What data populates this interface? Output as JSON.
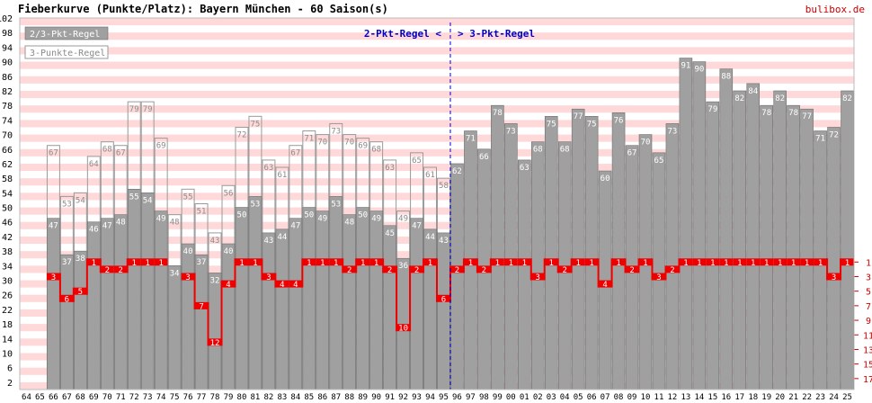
{
  "header": {
    "title": "Fieberkurve (Punkte/Platz): Bayern München - 60 Saison(s)",
    "brand": "bulibox.de"
  },
  "legend": {
    "item_23": "2/3-Pkt-Regel",
    "item_3": "3-Punkte-Regel"
  },
  "annotations": {
    "left": "2-Pkt-Regel <",
    "right": "> 3-Pkt-Regel"
  },
  "colors": {
    "bar_fill": "#a0a0a0",
    "bar_stroke": "#6e6e6e",
    "stripe": "#ffd9d9",
    "place_fill": "#ee0000",
    "place_axis": "#cc0000",
    "divider": "#0000cc",
    "annotation": "#0000cc",
    "outline": "#9a9a9a",
    "outline_label": "#8a8a8a"
  },
  "chart_data": {
    "type": "bar",
    "title": "Fieberkurve (Punkte/Platz): Bayern München - 60 Saison(s)",
    "categories": [
      "64",
      "65",
      "66",
      "67",
      "68",
      "69",
      "70",
      "71",
      "72",
      "73",
      "74",
      "75",
      "76",
      "77",
      "78",
      "79",
      "80",
      "81",
      "82",
      "83",
      "84",
      "85",
      "86",
      "87",
      "88",
      "89",
      "90",
      "91",
      "92",
      "93",
      "94",
      "95",
      "96",
      "97",
      "98",
      "99",
      "00",
      "01",
      "02",
      "03",
      "04",
      "05",
      "06",
      "07",
      "08",
      "09",
      "10",
      "11",
      "12",
      "13",
      "14",
      "15",
      "16",
      "17",
      "18",
      "19",
      "20",
      "21",
      "22",
      "23",
      "24",
      "25"
    ],
    "series": [
      {
        "name": "2/3-Pkt-Regel",
        "values": [
          null,
          null,
          47,
          37,
          38,
          46,
          47,
          48,
          55,
          54,
          49,
          34,
          40,
          37,
          32,
          40,
          50,
          53,
          43,
          44,
          47,
          50,
          49,
          53,
          48,
          50,
          49,
          45,
          36,
          47,
          44,
          43,
          62,
          71,
          66,
          78,
          73,
          63,
          68,
          75,
          68,
          77,
          75,
          60,
          76,
          67,
          70,
          65,
          73,
          91,
          90,
          79,
          88,
          82,
          84,
          78,
          82,
          78,
          77,
          71,
          72,
          82
        ]
      },
      {
        "name": "3-Punkte-Regel",
        "values": [
          null,
          null,
          67,
          53,
          54,
          64,
          68,
          67,
          79,
          79,
          69,
          48,
          55,
          51,
          43,
          56,
          72,
          75,
          63,
          61,
          67,
          71,
          70,
          73,
          70,
          69,
          68,
          63,
          49,
          65,
          61,
          58,
          null,
          null,
          null,
          null,
          null,
          null,
          null,
          null,
          null,
          null,
          null,
          null,
          null,
          null,
          null,
          null,
          null,
          null,
          null,
          null,
          null,
          null,
          null,
          null,
          null,
          null,
          null,
          null,
          null,
          null
        ]
      }
    ],
    "place": [
      null,
      null,
      3,
      6,
      5,
      1,
      2,
      2,
      1,
      1,
      1,
      null,
      3,
      7,
      12,
      4,
      1,
      1,
      3,
      4,
      4,
      1,
      1,
      1,
      2,
      1,
      1,
      2,
      10,
      2,
      1,
      6,
      2,
      1,
      2,
      1,
      1,
      1,
      3,
      1,
      2,
      1,
      1,
      4,
      1,
      2,
      1,
      3,
      2,
      1,
      1,
      1,
      1,
      1,
      1,
      1,
      1,
      1,
      1,
      1,
      3,
      1
    ],
    "y_ticks": [
      2,
      6,
      10,
      14,
      18,
      22,
      26,
      30,
      34,
      38,
      42,
      46,
      50,
      54,
      58,
      62,
      66,
      70,
      74,
      78,
      82,
      86,
      90,
      94,
      98,
      102
    ],
    "place_ticks": [
      1,
      3,
      5,
      7,
      9,
      11,
      13,
      15,
      17
    ],
    "ylim": [
      0,
      102
    ],
    "rule_change_after": "95",
    "grid": "horizontal stripes",
    "legend_position": "top-left"
  }
}
